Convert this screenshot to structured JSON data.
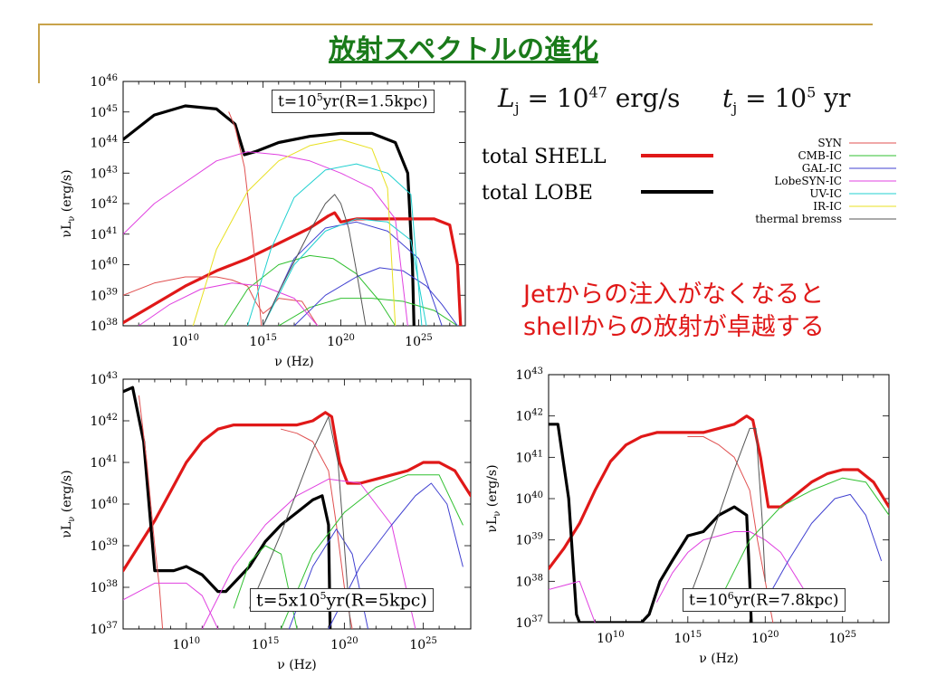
{
  "slide": {
    "title": "放射スペクトルの進化",
    "colors": {
      "title": "#1a7a1a",
      "rule": "#c8a34a",
      "comment": "#e01818"
    }
  },
  "header_eq": {
    "left": "L_j = 10^47 erg/s",
    "right": "t_j = 10^5 yr"
  },
  "legend": {
    "big": [
      {
        "label": "total SHELL",
        "color": "#e01818"
      },
      {
        "label": "total LOBE",
        "color": "#000000"
      }
    ],
    "small": [
      {
        "label": "SYN",
        "color": "#e05050"
      },
      {
        "label": "CMB-IC",
        "color": "#30c030"
      },
      {
        "label": "GAL-IC",
        "color": "#4040d0"
      },
      {
        "label": "LobeSYN-IC",
        "color": "#e040e0"
      },
      {
        "label": "UV-IC",
        "color": "#20d0d0"
      },
      {
        "label": "IR-IC",
        "color": "#e8e020"
      },
      {
        "label": "thermal bremss",
        "color": "#555555"
      }
    ]
  },
  "comment": {
    "line1": "Jetからの注入がなくなると",
    "line2": "shellからの放射が卓越する"
  },
  "chart_data": [
    {
      "type": "line",
      "label": "t=10^5yr(R=1.5kpc)",
      "xlabel": "ν (Hz)",
      "ylabel": "νL_ν (erg/s)",
      "xlim": [
        6,
        28
      ],
      "ylim": [
        38,
        46
      ],
      "log_x": true,
      "log_y": true,
      "xticks": [
        10,
        15,
        20,
        25
      ],
      "yticks": [
        38,
        39,
        40,
        41,
        42,
        43,
        44,
        45,
        46
      ],
      "series": [
        {
          "name": "total LOBE",
          "x": [
            6,
            8,
            10,
            12,
            13.2,
            13.8,
            14.5,
            16,
            18,
            20,
            22,
            23.5,
            24.3,
            24.6,
            24.7
          ],
          "y": [
            44.1,
            44.9,
            45.2,
            45.1,
            44.6,
            43.6,
            43.7,
            44.0,
            44.2,
            44.3,
            44.3,
            44.0,
            43.0,
            40,
            38
          ]
        },
        {
          "name": "total SHELL",
          "x": [
            6,
            8,
            10,
            12,
            14,
            16,
            18,
            19.2,
            19.6,
            20,
            21,
            22,
            24,
            26,
            27,
            27.5,
            27.7
          ],
          "y": [
            38.1,
            38.7,
            39.3,
            39.8,
            40.2,
            40.7,
            41.2,
            41.6,
            41.7,
            41.4,
            41.5,
            41.5,
            41.5,
            41.5,
            41.3,
            40,
            38
          ]
        },
        {
          "name": "SYN",
          "x": [
            6,
            8,
            10,
            12,
            13,
            14,
            14.5,
            15,
            15.5,
            16,
            17.5,
            18.5
          ],
          "y": [
            39,
            39.4,
            39.6,
            39.6,
            39.5,
            39.3,
            38.8,
            38.4,
            38.6,
            38.9,
            38.8,
            38
          ]
        },
        {
          "name": "SYN",
          "x": [
            12.8,
            13.2,
            13.8,
            14.3,
            14.6,
            14.9
          ],
          "y": [
            45.0,
            44.5,
            43.2,
            41,
            39.5,
            38
          ]
        },
        {
          "name": "CMB-IC",
          "x": [
            12.5,
            14,
            16,
            18,
            19.5,
            21,
            22.5,
            23.5
          ],
          "y": [
            38,
            39.2,
            40,
            40.3,
            40.2,
            39.7,
            38.8,
            38
          ]
        },
        {
          "name": "CMB-IC",
          "x": [
            16,
            18,
            20,
            22,
            24,
            26,
            27.5
          ],
          "y": [
            38,
            38.6,
            38.9,
            38.9,
            38.8,
            38.5,
            38
          ]
        },
        {
          "name": "GAL-IC",
          "x": [
            15,
            17,
            19,
            21,
            23,
            25,
            26.5
          ],
          "y": [
            38,
            40.2,
            41.2,
            41.4,
            41.1,
            40.2,
            38
          ]
        },
        {
          "name": "GAL-IC",
          "x": [
            17,
            19,
            21,
            22.5,
            24,
            25.5,
            26.5,
            27.5
          ],
          "y": [
            38,
            39,
            39.6,
            39.9,
            39.8,
            39.3,
            38.7,
            38
          ]
        },
        {
          "name": "LobeSYN-IC",
          "x": [
            6,
            8,
            10,
            12,
            14,
            16,
            18,
            20,
            22,
            23.5,
            24.3
          ],
          "y": [
            41,
            42,
            42.7,
            43.4,
            43.7,
            43.6,
            43.4,
            43.0,
            42.5,
            41.5,
            38
          ]
        },
        {
          "name": "LobeSYN-IC",
          "x": [
            7,
            9,
            11,
            13,
            15,
            17,
            18.5
          ],
          "y": [
            38,
            38.7,
            39.2,
            39.4,
            39.3,
            38.9,
            38
          ]
        },
        {
          "name": "UV-IC",
          "x": [
            14,
            15.5,
            17,
            19,
            21,
            23,
            24.5,
            25.2
          ],
          "y": [
            38,
            40.5,
            42.2,
            43.1,
            43.3,
            43,
            42.3,
            38
          ]
        },
        {
          "name": "UV-IC",
          "x": [
            15,
            17,
            19,
            21,
            23,
            24.5,
            25.5
          ],
          "y": [
            38,
            40,
            41.1,
            41.5,
            41.4,
            40.8,
            38
          ]
        },
        {
          "name": "IR-IC",
          "x": [
            10.5,
            12,
            14,
            16,
            18,
            20,
            22,
            23,
            23.5
          ],
          "y": [
            38,
            40.5,
            42.4,
            43.4,
            43.9,
            44.1,
            43.8,
            42.5,
            38
          ]
        },
        {
          "name": "thermal bremss",
          "x": [
            15,
            16,
            17,
            18,
            19,
            19.6,
            20,
            20.5,
            21,
            21.6
          ],
          "y": [
            38,
            39.1,
            40.1,
            41.1,
            42.0,
            42.3,
            42.0,
            41.2,
            39.8,
            38
          ]
        }
      ]
    },
    {
      "type": "line",
      "label": "t=5x10^5yr(R=5kpc)",
      "xlabel": "ν (Hz)",
      "ylabel": "νL_ν (erg/s)",
      "xlim": [
        6,
        28
      ],
      "ylim": [
        37,
        43
      ],
      "log_x": true,
      "log_y": true,
      "xticks": [
        10,
        15,
        20,
        25
      ],
      "yticks": [
        37,
        38,
        39,
        40,
        41,
        42,
        43
      ],
      "series": [
        {
          "name": "total SHELL",
          "x": [
            6,
            7,
            8,
            9,
            10,
            11,
            12,
            13,
            14,
            15,
            16,
            17,
            18,
            18.8,
            19.2,
            19.7,
            20.2,
            21,
            22,
            23,
            24,
            25,
            26,
            27,
            28
          ],
          "y": [
            38.4,
            39.0,
            39.6,
            40.3,
            41.0,
            41.5,
            41.8,
            41.9,
            41.9,
            41.9,
            41.9,
            41.9,
            42.0,
            42.2,
            42.1,
            41.0,
            40.5,
            40.5,
            40.6,
            40.7,
            40.8,
            41.0,
            41.0,
            40.8,
            40.2
          ]
        },
        {
          "name": "total LOBE",
          "x": [
            6,
            6.6,
            7.3,
            8,
            8.6,
            9.2,
            10,
            11,
            12,
            12.5,
            13,
            14,
            15,
            16,
            17,
            18,
            18.6,
            19,
            19.1
          ],
          "y": [
            42.7,
            42.8,
            41.5,
            38.4,
            38.4,
            38.4,
            38.5,
            38.3,
            37.9,
            37.9,
            38.1,
            38.5,
            39.1,
            39.5,
            39.8,
            40.1,
            40.2,
            39.5,
            37
          ]
        },
        {
          "name": "SYN",
          "x": [
            7,
            7.5,
            8,
            8.3,
            8.5
          ],
          "y": [
            42.6,
            41,
            39,
            38,
            37
          ]
        },
        {
          "name": "SYN",
          "x": [
            16,
            17,
            18,
            19,
            19.5,
            20,
            20.5
          ],
          "y": [
            41.8,
            41.7,
            41.5,
            40.8,
            39.5,
            38,
            37
          ]
        },
        {
          "name": "LobeSYN-IC",
          "x": [
            6,
            8,
            10,
            11,
            12
          ],
          "y": [
            37.7,
            38.1,
            38.1,
            37.8,
            37
          ]
        },
        {
          "name": "LobeSYN-IC",
          "x": [
            11,
            13,
            15,
            17,
            19,
            21,
            23,
            24.5
          ],
          "y": [
            37,
            38.5,
            39.5,
            40.2,
            40.6,
            40.5,
            39.5,
            37
          ]
        },
        {
          "name": "CMB-IC",
          "x": [
            13,
            14,
            15,
            16,
            17
          ],
          "y": [
            37.5,
            38.6,
            39.0,
            38.8,
            37
          ]
        },
        {
          "name": "CMB-IC",
          "x": [
            16,
            18,
            20,
            22,
            24,
            26,
            27.5
          ],
          "y": [
            37,
            38.8,
            39.8,
            40.4,
            40.7,
            40.7,
            39.5
          ]
        },
        {
          "name": "GAL-IC",
          "x": [
            16.5,
            18,
            19.5,
            20.5,
            21.5
          ],
          "y": [
            37,
            38.5,
            39.4,
            38.8,
            37
          ]
        },
        {
          "name": "GAL-IC",
          "x": [
            19,
            21,
            23,
            24.5,
            25.5,
            26.5,
            27.5
          ],
          "y": [
            37,
            38.5,
            39.5,
            40.2,
            40.5,
            40.0,
            38.5
          ]
        },
        {
          "name": "thermal bremss",
          "x": [
            14,
            15,
            16,
            17,
            18,
            19,
            19.6,
            20,
            20.4
          ],
          "y": [
            37.5,
            38.4,
            39.3,
            40.3,
            41.3,
            42.1,
            41,
            39,
            37
          ]
        }
      ]
    },
    {
      "type": "line",
      "label": "t=10^6yr(R=7.8kpc)",
      "xlabel": "ν (Hz)",
      "ylabel": "νL_ν (erg/s)",
      "xlim": [
        6,
        28
      ],
      "ylim": [
        37,
        43
      ],
      "log_x": true,
      "log_y": true,
      "xticks": [
        10,
        15,
        20,
        25
      ],
      "yticks": [
        37,
        38,
        39,
        40,
        41,
        42,
        43
      ],
      "series": [
        {
          "name": "total SHELL",
          "x": [
            6,
            7,
            8,
            9,
            10,
            11,
            12,
            13,
            14,
            15,
            16,
            17,
            18,
            18.8,
            19.2,
            19.7,
            20.2,
            21,
            22,
            23,
            24,
            25,
            26,
            27,
            28
          ],
          "y": [
            38.3,
            38.8,
            39.4,
            40.2,
            40.9,
            41.3,
            41.5,
            41.6,
            41.6,
            41.6,
            41.6,
            41.7,
            41.8,
            42.0,
            41.9,
            41.0,
            39.8,
            39.8,
            40.1,
            40.4,
            40.6,
            40.7,
            40.7,
            40.4,
            39.8
          ]
        },
        {
          "name": "total LOBE",
          "x": [
            6,
            6.6,
            7.3,
            7.8,
            8,
            12,
            12.5,
            13.2,
            14,
            15,
            16,
            17,
            18,
            18.8,
            19,
            19.1
          ],
          "y": [
            41.8,
            41.8,
            40,
            37.2,
            37,
            37,
            37.2,
            38,
            38.5,
            39.1,
            39.2,
            39.6,
            39.8,
            39.6,
            38,
            37
          ]
        },
        {
          "name": "SYN",
          "x": [
            15,
            16,
            17,
            18,
            19,
            19.5,
            20,
            20.5
          ],
          "y": [
            41.5,
            41.5,
            41.3,
            41.0,
            40.2,
            39,
            38,
            37
          ]
        },
        {
          "name": "LobeSYN-IC",
          "x": [
            13,
            14,
            15,
            16,
            17,
            18,
            19,
            20,
            21,
            22,
            23
          ],
          "y": [
            37.5,
            38.2,
            38.7,
            39.0,
            39.1,
            39.2,
            39.2,
            39.0,
            38.7,
            38.1,
            37.5
          ]
        },
        {
          "name": "LobeSYN-IC",
          "x": [
            6,
            8,
            9
          ],
          "y": [
            37.8,
            38.0,
            37
          ]
        },
        {
          "name": "CMB-IC",
          "x": [
            17,
            19,
            21,
            23,
            25,
            26.5,
            28
          ],
          "y": [
            37.5,
            39.0,
            39.8,
            40.2,
            40.5,
            40.4,
            39.6
          ]
        },
        {
          "name": "GAL-IC",
          "x": [
            20,
            21.5,
            23,
            24.5,
            25.5,
            26.5,
            27.5
          ],
          "y": [
            37.5,
            38.5,
            39.4,
            40.0,
            40.1,
            39.6,
            38.5
          ]
        },
        {
          "name": "thermal bremss",
          "x": [
            15,
            16,
            17,
            18,
            19,
            19.4,
            19.8,
            20
          ],
          "y": [
            37.5,
            38.5,
            39.6,
            40.7,
            41.7,
            41.7,
            39.5,
            38
          ]
        }
      ]
    }
  ]
}
